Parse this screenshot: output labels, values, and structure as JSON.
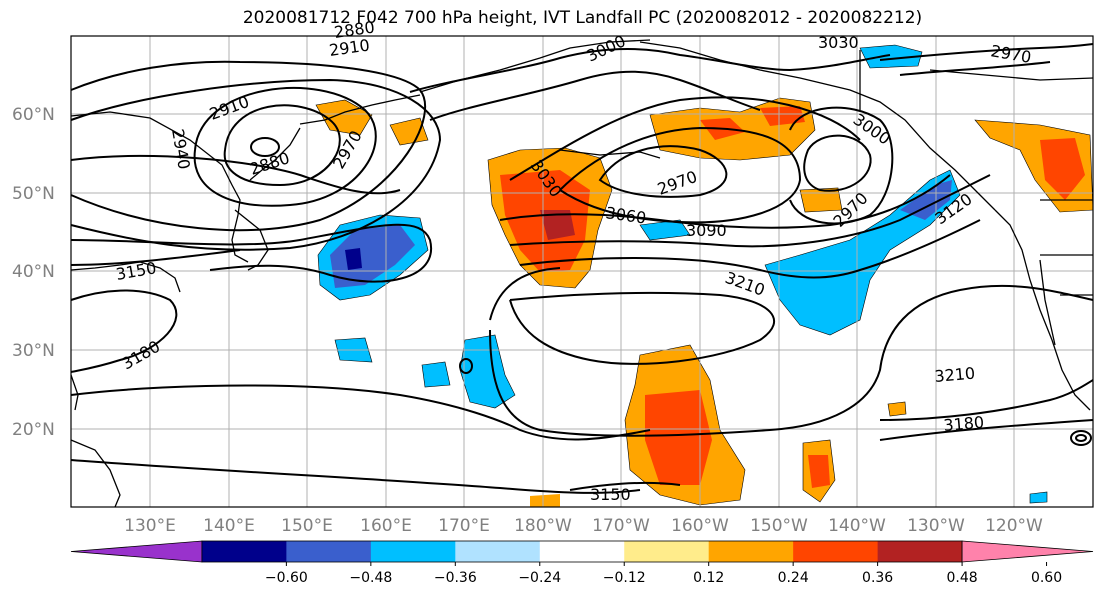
{
  "title": "2020081712 F042 700 hPa height, IVT Landfall PC (2020082012 - 2020082212)",
  "axes": {
    "lat_labels": [
      "60°N",
      "50°N",
      "40°N",
      "30°N",
      "20°N"
    ],
    "lon_labels": [
      "130°E",
      "140°E",
      "150°E",
      "160°E",
      "170°E",
      "180°W",
      "170°W",
      "160°W",
      "150°W",
      "140°W",
      "130°W",
      "120°W"
    ]
  },
  "contour_labels": [
    "2910",
    "2880",
    "3000",
    "3030",
    "2970",
    "2910",
    "2880",
    "2940",
    "2970",
    "3030",
    "2970",
    "3060",
    "3090",
    "3000",
    "2970",
    "3120",
    "3150",
    "3210",
    "3180",
    "3210",
    "3180",
    "3150"
  ],
  "colorbar": {
    "tick_labels": [
      "−0.60",
      "−0.48",
      "−0.36",
      "−0.24",
      "−0.12",
      "0.12",
      "0.24",
      "0.36",
      "0.48",
      "0.60"
    ],
    "colors": [
      "#9932cc",
      "#00008b",
      "#3a5fcd",
      "#00bfff",
      "#b0e2ff",
      "#ffffff",
      "#ffec8b",
      "#ffa500",
      "#ff4500",
      "#b22222",
      "#ff82ab"
    ]
  }
}
